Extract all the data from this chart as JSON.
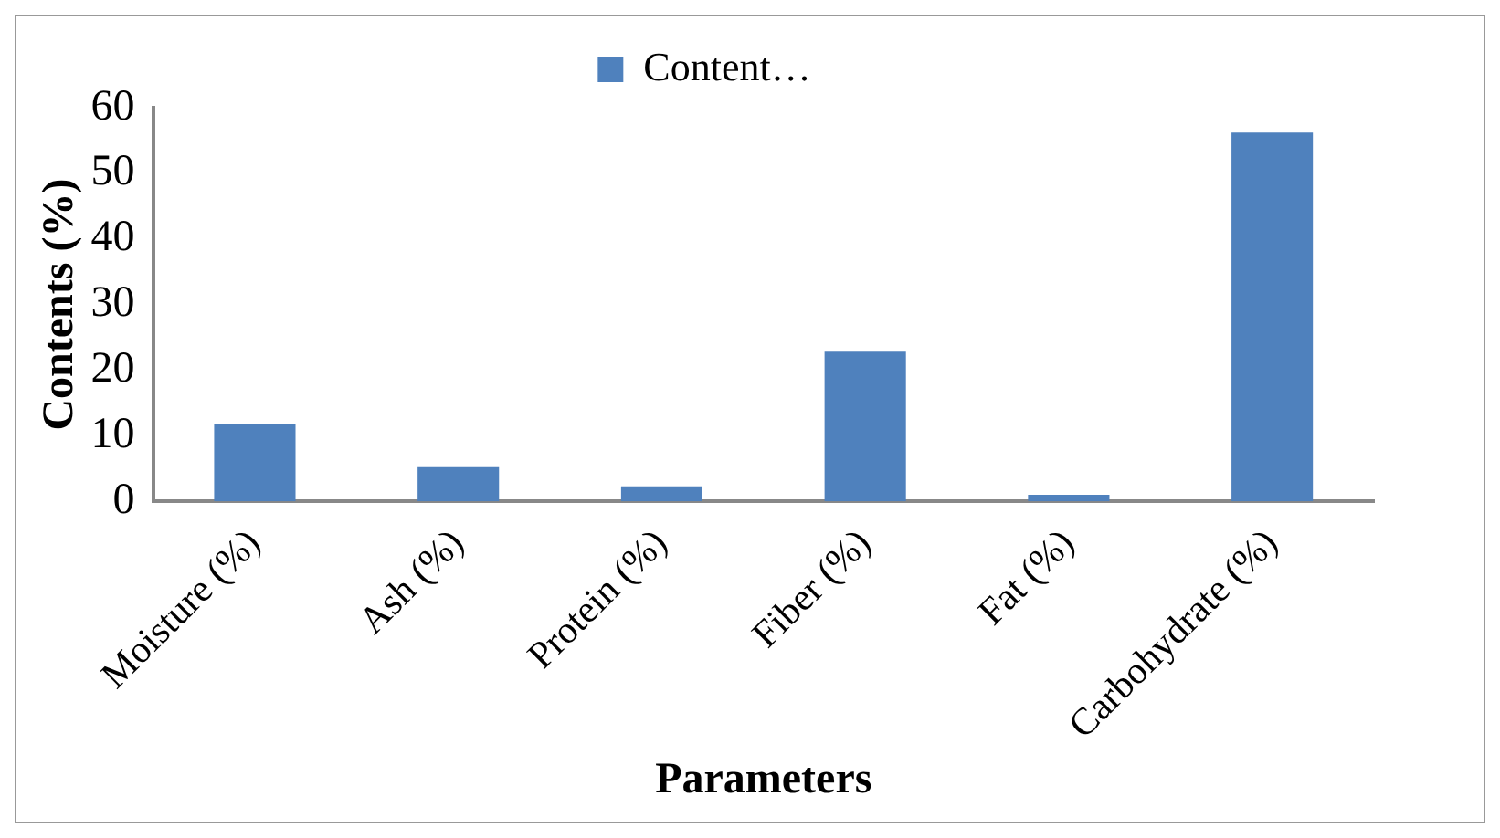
{
  "chart_data": {
    "type": "bar",
    "xlabel": "Parameters",
    "ylabel": "Contents (%)",
    "categories": [
      "Moisture (%)",
      "Ash (%)",
      "Protein (%)",
      "Fiber (%)",
      "Fat (%)",
      "Carbohydrate (%)"
    ],
    "series": [
      {
        "name": "Content…",
        "color": "#4f81bd",
        "values": [
          11.8,
          5.2,
          2.3,
          22.8,
          1.0,
          56.2
        ]
      }
    ],
    "ylim": [
      0,
      60
    ],
    "yticks": [
      0,
      10,
      20,
      30,
      40,
      50,
      60
    ],
    "grid": false,
    "legend": "top"
  }
}
